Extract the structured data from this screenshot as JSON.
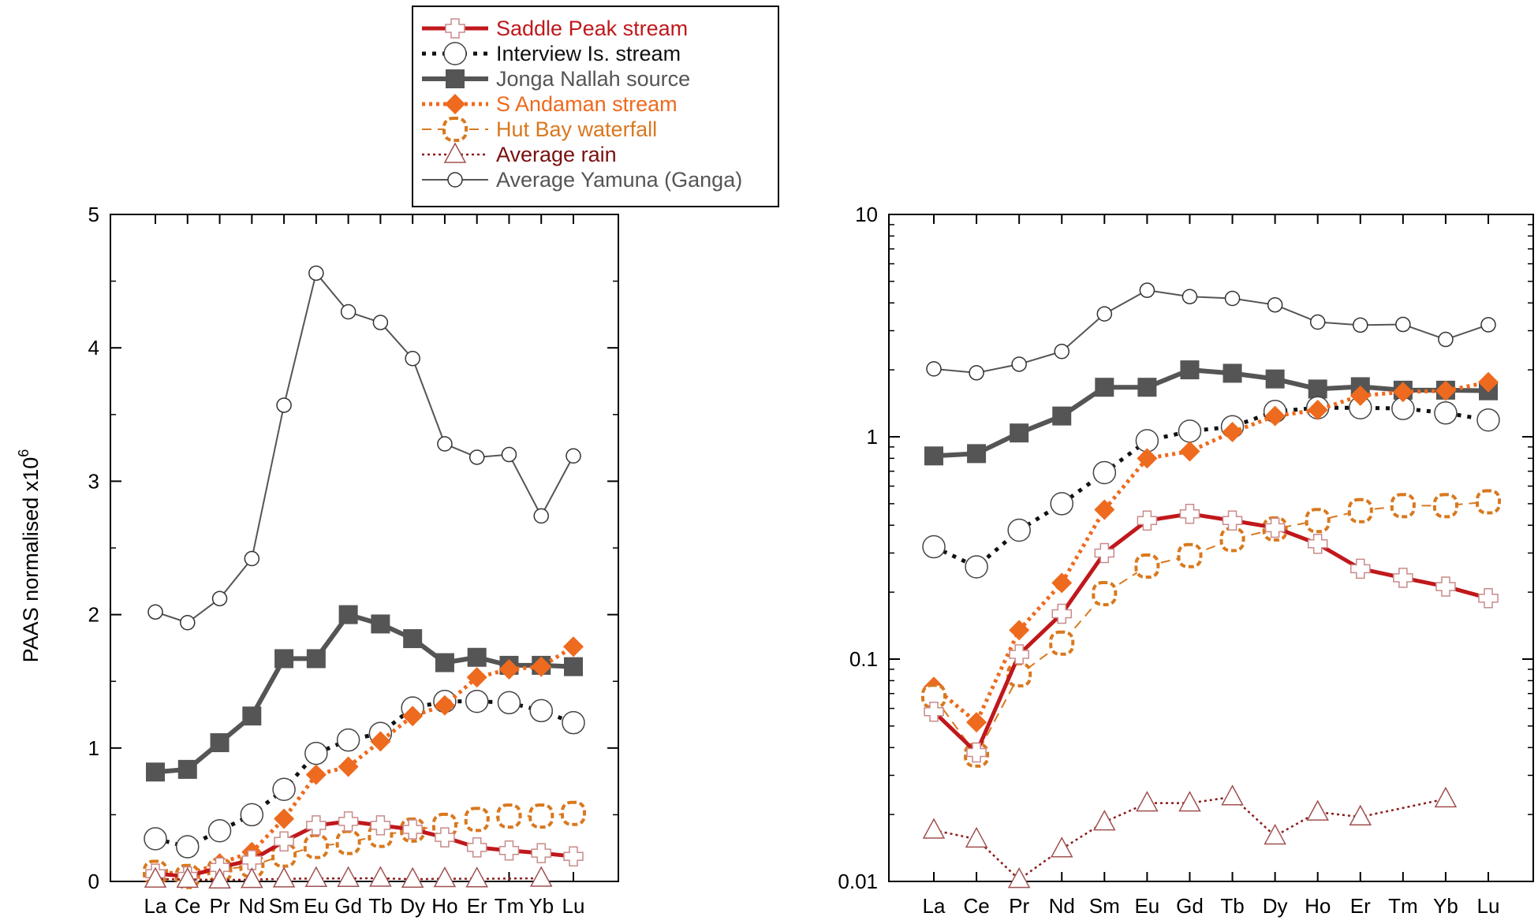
{
  "chart_data": {
    "type": "line",
    "ylabel": "PAAS normalised x10",
    "ylabel_superscript": "6",
    "categories": [
      "La",
      "Ce",
      "Pr",
      "Nd",
      "Sm",
      "Eu",
      "Gd",
      "Tb",
      "Dy",
      "Ho",
      "Er",
      "Tm",
      "Yb",
      "Lu"
    ],
    "legend_position": "top-center",
    "panels": [
      {
        "name": "linear",
        "scale": "linear",
        "ylim": [
          0,
          5
        ],
        "ticks": [
          {
            "v": 0,
            "label": "0"
          },
          {
            "v": 1,
            "label": "1"
          },
          {
            "v": 2,
            "label": "2"
          },
          {
            "v": 3,
            "label": "3"
          },
          {
            "v": 4,
            "label": "4"
          },
          {
            "v": 5,
            "label": "5"
          }
        ]
      },
      {
        "name": "log",
        "scale": "log",
        "ylim": [
          0.01,
          10
        ],
        "ticks": [
          {
            "v": 0.01,
            "label": "0.01"
          },
          {
            "v": 0.1,
            "label": "0.1"
          },
          {
            "v": 1,
            "label": "1"
          },
          {
            "v": 10,
            "label": "10"
          }
        ]
      }
    ],
    "series": [
      {
        "name": "Average Yamuna (Ganga)",
        "color": "#555555",
        "text_color": "#555555",
        "line": "solid",
        "marker": "small-circle",
        "values": [
          2.02,
          1.94,
          2.12,
          2.42,
          3.57,
          4.56,
          4.27,
          4.19,
          3.92,
          3.28,
          3.18,
          3.2,
          2.74,
          3.19
        ]
      },
      {
        "name": "Jonga Nallah source",
        "color": "#555555",
        "text_color": "#555555",
        "line": "thick",
        "marker": "square",
        "values": [
          0.82,
          0.84,
          1.04,
          1.24,
          1.67,
          1.67,
          2.0,
          1.93,
          1.82,
          1.64,
          1.68,
          1.62,
          1.62,
          1.61
        ]
      },
      {
        "name": "Interview Is. stream",
        "color": "#111111",
        "text_color": "#111111",
        "line": "dotted",
        "marker": "circle",
        "values": [
          0.32,
          0.26,
          0.38,
          0.5,
          0.69,
          0.96,
          1.06,
          1.11,
          1.3,
          1.35,
          1.35,
          1.34,
          1.28,
          1.19
        ]
      },
      {
        "name": "S Andaman stream",
        "color": "#ee6a1e",
        "text_color": "#ee6a1e",
        "line": "dotted-thick",
        "marker": "diamond",
        "values": [
          0.075,
          0.052,
          0.135,
          0.22,
          0.47,
          0.8,
          0.86,
          1.05,
          1.24,
          1.32,
          1.53,
          1.59,
          1.61,
          1.76
        ]
      },
      {
        "name": "Hut Bay waterfall",
        "color": "#d9781e",
        "text_color": "#d9781e",
        "line": "dashed",
        "marker": "rounded-square",
        "values": [
          0.068,
          0.037,
          0.085,
          0.118,
          0.197,
          0.262,
          0.292,
          0.345,
          0.385,
          0.42,
          0.465,
          0.49,
          0.49,
          0.51
        ]
      },
      {
        "name": "Saddle Peak stream",
        "color": "#c0181c",
        "text_color": "#c0181c",
        "line": "solid-thick",
        "marker": "cross",
        "values": [
          0.058,
          0.038,
          0.105,
          0.16,
          0.3,
          0.42,
          0.45,
          0.42,
          0.39,
          0.33,
          0.255,
          0.232,
          0.212,
          0.188
        ]
      },
      {
        "name": "Average rain",
        "color": "#8a1a1a",
        "text_color": "#7a1010",
        "line": "fine-dotted",
        "marker": "triangle",
        "values": [
          0.017,
          0.0155,
          0.0102,
          0.014,
          0.0185,
          0.0225,
          0.0225,
          0.024,
          0.016,
          0.0205,
          0.0195,
          null,
          0.0235,
          null
        ]
      }
    ],
    "legend_order": [
      "Saddle Peak stream",
      "Interview Is. stream",
      "Jonga Nallah source",
      "S Andaman stream",
      "Hut Bay waterfall",
      "Average rain",
      "Average Yamuna (Ganga)"
    ]
  }
}
